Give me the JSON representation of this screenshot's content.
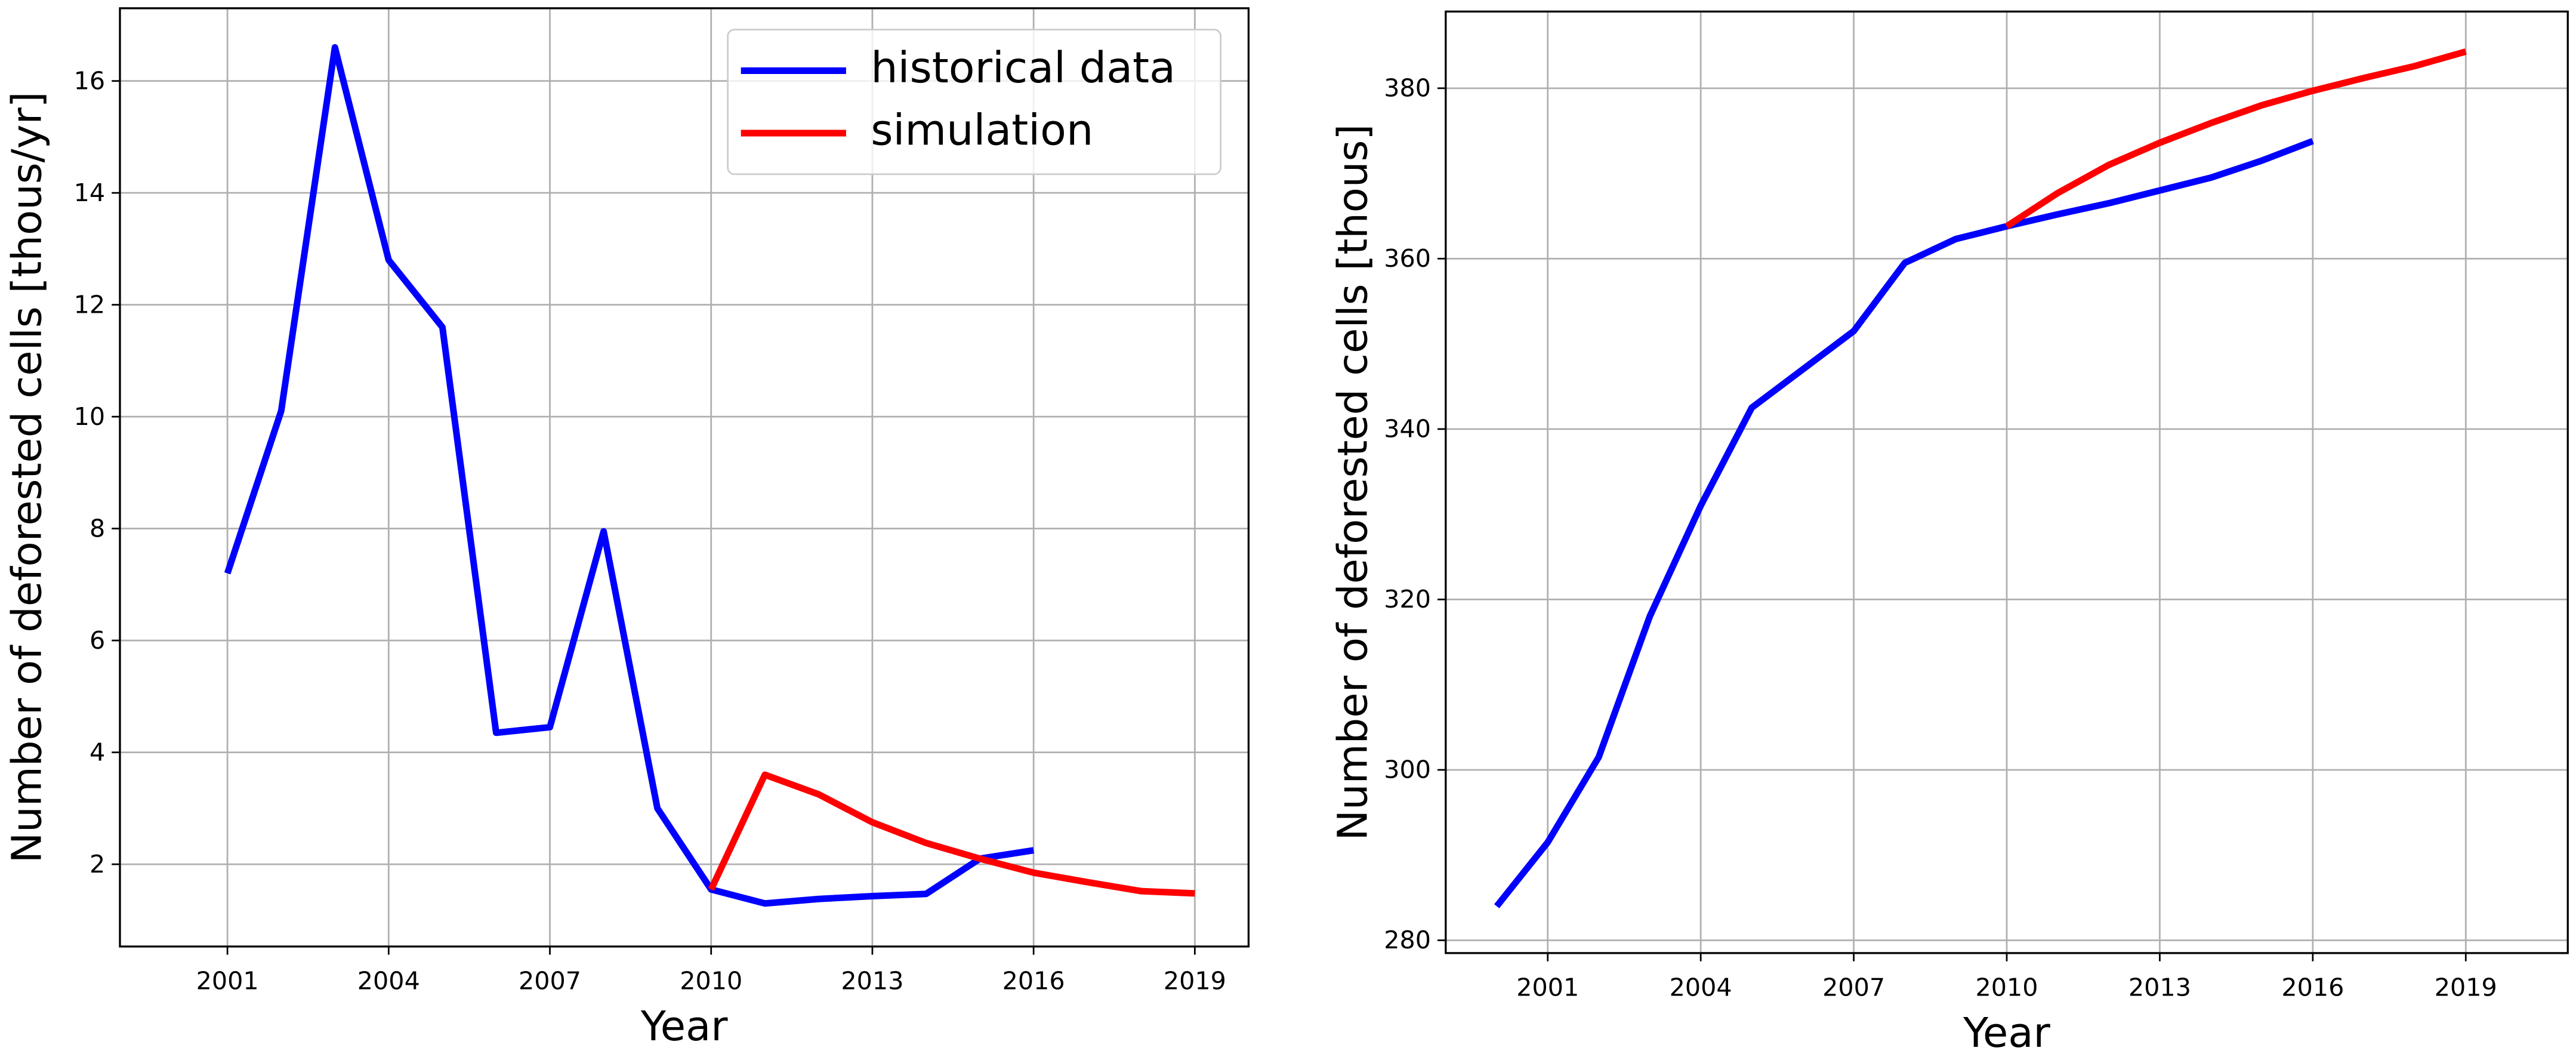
{
  "chart_data": [
    {
      "type": "line",
      "xlabel": "Year",
      "ylabel": "Number of deforested cells [thous/yr]",
      "xlim": [
        1999,
        2020
      ],
      "ylim": [
        0.53,
        17.3
      ],
      "xticks": [
        2001,
        2004,
        2007,
        2010,
        2013,
        2016,
        2019
      ],
      "yticks": [
        2,
        4,
        6,
        8,
        10,
        12,
        14,
        16
      ],
      "grid": true,
      "legend": "upper right",
      "series": [
        {
          "name": "historical data",
          "color": "#0000ff",
          "x": [
            2001,
            2002,
            2003,
            2004,
            2005,
            2006,
            2007,
            2008,
            2009,
            2010,
            2011,
            2012,
            2013,
            2014,
            2015,
            2016
          ],
          "values": [
            7.2,
            10.1,
            16.6,
            12.8,
            11.6,
            4.35,
            4.45,
            7.95,
            3.0,
            1.55,
            1.3,
            1.38,
            1.43,
            1.47,
            2.1,
            2.25
          ]
        },
        {
          "name": "simulation",
          "color": "#ff0000",
          "x": [
            2010,
            2011,
            2012,
            2013,
            2014,
            2015,
            2016,
            2017,
            2018,
            2019
          ],
          "values": [
            1.55,
            3.6,
            3.25,
            2.75,
            2.38,
            2.1,
            1.85,
            1.68,
            1.52,
            1.48
          ]
        }
      ]
    },
    {
      "type": "line",
      "xlabel": "Year",
      "ylabel": "Number of deforested cells [thous]",
      "xlim": [
        1999,
        2021
      ],
      "ylim": [
        278.5,
        389
      ],
      "xticks": [
        2001,
        2004,
        2007,
        2010,
        2013,
        2016,
        2019
      ],
      "yticks": [
        280,
        300,
        320,
        340,
        360,
        380
      ],
      "grid": true,
      "series": [
        {
          "color": "#0000ff",
          "x": [
            2000,
            2001,
            2002,
            2003,
            2004,
            2005,
            2006,
            2007,
            2008,
            2009,
            2010,
            2011,
            2012,
            2013,
            2014,
            2015,
            2016
          ],
          "values": [
            284,
            291.5,
            301.5,
            318,
            331,
            342.5,
            347,
            351.5,
            359.5,
            362.3,
            363.8,
            365.2,
            366.5,
            368,
            369.5,
            371.5,
            373.8
          ]
        },
        {
          "color": "#ff0000",
          "x": [
            2010,
            2011,
            2012,
            2013,
            2014,
            2015,
            2016,
            2017,
            2018,
            2019
          ],
          "values": [
            363.8,
            367.7,
            371,
            373.6,
            375.9,
            378,
            379.7,
            381.2,
            382.6,
            384.3
          ]
        }
      ]
    }
  ]
}
